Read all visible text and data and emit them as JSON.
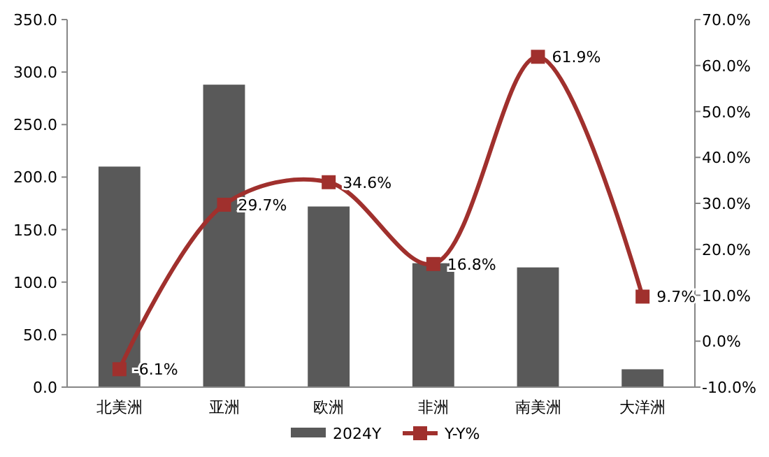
{
  "chart_data": {
    "type": "bar",
    "categories": [
      "北美洲",
      "亚洲",
      "欧洲",
      "非洲",
      "南美洲",
      "大洋洲"
    ],
    "series": [
      {
        "name": "2024Y",
        "color": "#595959",
        "values": [
          210,
          288,
          172,
          118,
          114,
          17
        ]
      },
      {
        "name": "Y-Y%",
        "type": "line",
        "axis": "y2",
        "color": "#a0302d",
        "marker": "square",
        "values": [
          -6.1,
          29.7,
          34.6,
          16.8,
          61.9,
          9.7
        ],
        "value_labels": [
          "-6.1%",
          "29.7%",
          "34.6%",
          "16.8%",
          "61.9%",
          "9.7%"
        ]
      }
    ],
    "ylim": [
      0,
      350
    ],
    "yticks": [
      {
        "value": 0,
        "label": "0.0"
      },
      {
        "value": 50,
        "label": "50.0"
      },
      {
        "value": 100,
        "label": "100.0"
      },
      {
        "value": 150,
        "label": "150.0"
      },
      {
        "value": 200,
        "label": "200.0"
      },
      {
        "value": 250,
        "label": "250.0"
      },
      {
        "value": 300,
        "label": "300.0"
      },
      {
        "value": 350,
        "label": "350.0"
      }
    ],
    "y2lim": [
      -10,
      70
    ],
    "y2ticks": [
      {
        "value": -10,
        "label": "-10.0%"
      },
      {
        "value": 0,
        "label": "0.0%"
      },
      {
        "value": 10,
        "label": "10.0%"
      },
      {
        "value": 20,
        "label": "20.0%"
      },
      {
        "value": 30,
        "label": "30.0%"
      },
      {
        "value": 40,
        "label": "40.0%"
      },
      {
        "value": 50,
        "label": "50.0%"
      },
      {
        "value": 60,
        "label": "60.0%"
      },
      {
        "value": 70,
        "label": "70.0%"
      }
    ],
    "legend": "bottom",
    "grid": false
  }
}
